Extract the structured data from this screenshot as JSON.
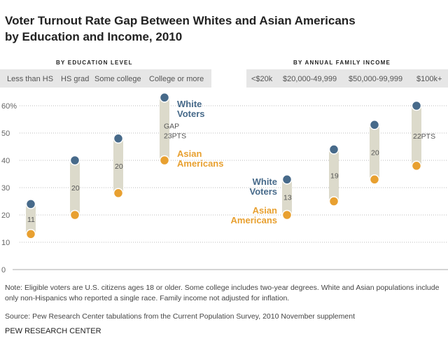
{
  "chart_data": [
    {
      "type": "dot-range",
      "title": "Voter Turnout Rate Gap Between Whites and Asian Americans by Education and Income, 2010",
      "section_label": "BY EDUCATION LEVEL",
      "categories": [
        "Less than HS",
        "HS grad",
        "Some college",
        "College or more"
      ],
      "series": [
        {
          "name": "White Voters",
          "color": "#476a8a",
          "values": [
            24,
            40,
            48,
            63
          ]
        },
        {
          "name": "Asian Americans",
          "color": "#e8a030",
          "values": [
            13,
            20,
            28,
            40
          ]
        }
      ],
      "gap_labels": [
        "11",
        "20",
        "20",
        "GAP 23PTS"
      ],
      "yticks": [
        "0",
        "10",
        "20",
        "30",
        "40",
        "50",
        "60%"
      ],
      "ylim": [
        0,
        60
      ],
      "grid": true
    },
    {
      "type": "dot-range",
      "section_label": "BY ANNUAL FAMILY INCOME",
      "categories": [
        "<$20k",
        "$20,000-49,999",
        "$50,000-99,999",
        "$100k+"
      ],
      "series": [
        {
          "name": "White Voters",
          "color": "#476a8a",
          "values": [
            33,
            44,
            53,
            60
          ]
        },
        {
          "name": "Asian Americans",
          "color": "#e8a030",
          "values": [
            20,
            25,
            33,
            38
          ]
        }
      ],
      "gap_labels": [
        "13",
        "19",
        "20",
        "22PTS"
      ],
      "ylim": [
        0,
        60
      ],
      "grid": true
    }
  ],
  "title_line1": "Voter Turnout Rate Gap Between Whites and Asian Americans",
  "title_line2": "by Education and Income, 2010",
  "note": "Note: Eligible voters are U.S. citizens ages 18 or older. Some college includes two-year degrees. White and Asian populations include only non-Hispanics who reported a single race. Family income not adjusted for inflation.",
  "source": "Source: Pew Research Center tabulations from the Current Population Survey, 2010 November supplement",
  "brand": "PEW RESEARCH CENTER",
  "legend": {
    "white_line1": "White",
    "white_line2": "Voters",
    "asian_line1": "Asian",
    "asian_line2": "Americans"
  },
  "colors": {
    "white": "#476a8a",
    "asian": "#e8a030",
    "bar": "#dcdacb"
  }
}
